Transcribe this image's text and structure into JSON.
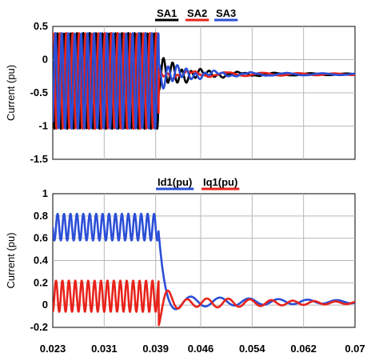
{
  "chart_data": [
    {
      "type": "line",
      "ylabel": "Current (pu)",
      "ylim": [
        -1.5,
        0.5
      ],
      "yticks": [
        "0.5",
        "0",
        "-0.5",
        "-1",
        "-1.5"
      ],
      "xlim": [
        0.023,
        0.07
      ],
      "grid": true,
      "legend_position": "top-center",
      "series": [
        {
          "name": "SA1",
          "color": "#000000"
        },
        {
          "name": "SA2",
          "color": "#e8231b"
        },
        {
          "name": "SA3",
          "color": "#2b4fd6"
        }
      ],
      "pre_fault": {
        "t_end": 0.0395,
        "amplitude": 0.72,
        "offset": -0.32,
        "frequency_hz": 1000,
        "phases_deg": {
          "SA1": 0,
          "SA2": -120,
          "SA3": 120
        }
      },
      "post_fault": {
        "level": -0.22,
        "oscillation_amplitude": 0.05
      }
    },
    {
      "type": "line",
      "ylabel": "Current (pu)",
      "ylim": [
        -0.2,
        1.0
      ],
      "yticks": [
        "1",
        "0.8",
        "0.6",
        "0.4",
        "0.2",
        "0",
        "-0.2"
      ],
      "xlim": [
        0.023,
        0.07
      ],
      "xticks": [
        "0.023",
        "0.031",
        "0.039",
        "0.046",
        "0.054",
        "0.062",
        "0.07"
      ],
      "grid": true,
      "legend_position": "top-center",
      "series": [
        {
          "name": "Id1(pu)",
          "color": "#2b4fd6",
          "pre_fault_center": 0.7,
          "pre_fault_amplitude": 0.12,
          "post_fault_level": 0.03
        },
        {
          "name": "Iq1(pu)",
          "color": "#e8231b",
          "pre_fault_center": 0.08,
          "pre_fault_amplitude": 0.14,
          "post_fault_level": 0.02
        }
      ]
    }
  ]
}
